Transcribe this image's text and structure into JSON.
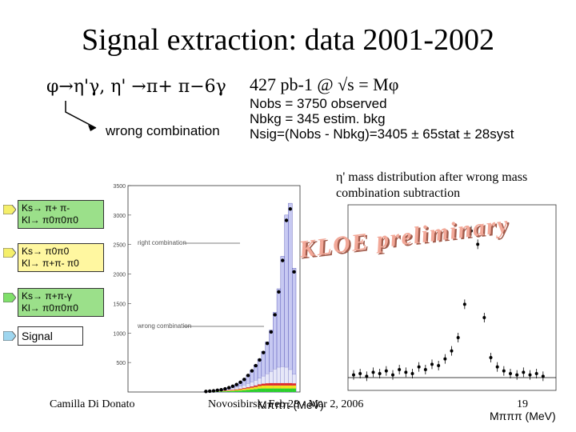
{
  "slide": {
    "title": "Signal extraction: data 2001-2002",
    "decay_chain": "φ→η'γ,  η' →π+ π−6γ",
    "wrong_combination_label": "wrong combination",
    "luminosity": "427 pb-1 @ √s = Mφ",
    "stats": {
      "n_obs": "Nobs = 3750 observed",
      "n_bkg": "Nbkg = 345   estim. bkg",
      "n_sig": "Nsig=(Nobs - Nbkg)=3405 ± 65stat ± 28syst"
    },
    "caption": "η' mass distribution after wrong mass combination subtraction",
    "preliminary": "KLOE preliminary",
    "legend": [
      {
        "line1": "Ks→ π+ π-",
        "line2": "Kl→ π0π0π0",
        "color": "#9be08a"
      },
      {
        "line1": "Ks→ π0π0",
        "line2": "Kl→ π+π- π0",
        "color": "#fff7a0"
      },
      {
        "line1": "Ks→ π+π-γ",
        "line2": "Kl→ π0π0π0",
        "color": "#9be08a"
      },
      {
        "line1": "Signal",
        "line2": "",
        "color": "#ffffff"
      }
    ],
    "footer_author": "Camilla Di Donato",
    "footer_venue": "Novosibirsk, Feb 28 - Mar 2, 2006",
    "page_number": "19",
    "x_axis_label": "Mπππ (MeV)",
    "left_plot_labels": {
      "right_combination": "right combination",
      "wrong_combination": "wrong combination"
    },
    "left_plot_yticks": [
      "3500",
      "3000",
      "2500",
      "2000",
      "1500",
      "1000",
      "500"
    ]
  },
  "chart_data": [
    {
      "type": "bar",
      "title": "",
      "xlabel": "Mπππ (MeV)",
      "ylabel": "",
      "ylim": [
        0,
        3500
      ],
      "categories": [
        "b1",
        "b2",
        "b3",
        "b4",
        "b5",
        "b6",
        "b7",
        "b8",
        "b9",
        "b10",
        "b11",
        "b12",
        "b13",
        "b14",
        "b15",
        "b16",
        "b17",
        "b18",
        "b19",
        "b20",
        "b21",
        "b22",
        "b23",
        "b24"
      ],
      "series": [
        {
          "name": "right combination",
          "values": [
            10,
            15,
            20,
            30,
            40,
            55,
            75,
            100,
            130,
            170,
            220,
            290,
            370,
            460,
            560,
            690,
            850,
            1050,
            1350,
            1750,
            2300,
            3000,
            3200,
            2100
          ]
        },
        {
          "name": "wrong combination",
          "values": [
            10,
            15,
            20,
            28,
            36,
            45,
            55,
            68,
            82,
            100,
            120,
            145,
            170,
            200,
            235,
            270,
            310,
            350,
            390,
            420,
            430,
            420,
            380,
            300
          ]
        }
      ]
    },
    {
      "type": "scatter",
      "title": "",
      "xlabel": "Mπππ (MeV)",
      "ylabel": "",
      "series": [
        {
          "name": "",
          "values": [
            2,
            3,
            1,
            4,
            3,
            5,
            2,
            6,
            4,
            3,
            8,
            6,
            10,
            9,
            14,
            20,
            30,
            55,
            110,
            100,
            45,
            15,
            8,
            5,
            3,
            2,
            4,
            2,
            3,
            1
          ]
        }
      ]
    }
  ]
}
